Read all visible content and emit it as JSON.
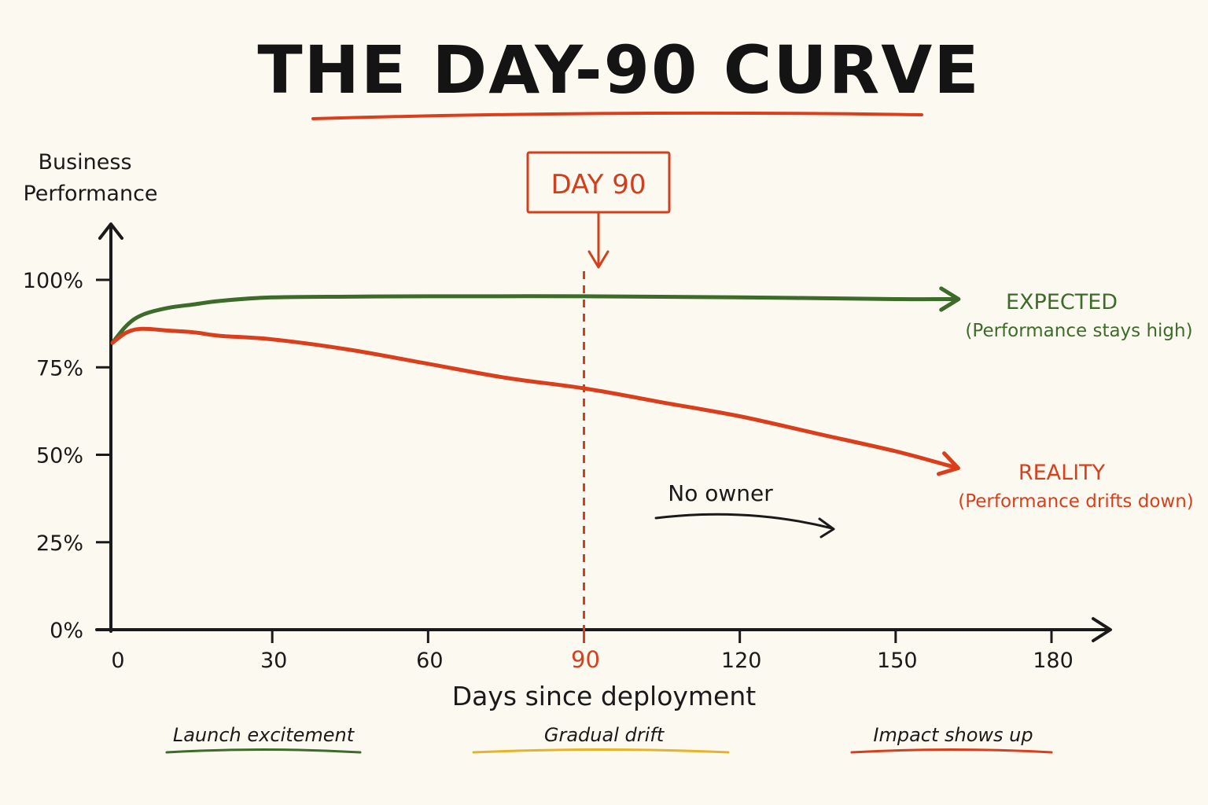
{
  "title": "THE DAY-90 CURVE",
  "colors": {
    "expected": "#3d6b2a",
    "reality": "#d93f1d",
    "marker": "#d23f1c",
    "ink": "#1a1a1a",
    "drift": "#e6b42a"
  },
  "marker": {
    "label": "DAY 90",
    "x": 90
  },
  "annotation": "No owner",
  "phases": [
    {
      "label": "Launch excitement",
      "color": "#3d6b2a"
    },
    {
      "label": "Gradual drift",
      "color": "#e6b42a"
    },
    {
      "label": "Impact shows up",
      "color": "#d93f1d"
    }
  ],
  "chart_data": {
    "type": "line",
    "title": "THE DAY-90 CURVE",
    "xlabel": "Days since deployment",
    "ylabel": "Business Performance",
    "xlim": [
      0,
      180
    ],
    "ylim": [
      0,
      100
    ],
    "x_ticks": [
      {
        "value": 0,
        "label": "0"
      },
      {
        "value": 30,
        "label": "30"
      },
      {
        "value": 60,
        "label": "60"
      },
      {
        "value": 90,
        "label": "90",
        "highlight": true
      },
      {
        "value": 120,
        "label": "120"
      },
      {
        "value": 150,
        "label": "150"
      },
      {
        "value": 180,
        "label": "180"
      }
    ],
    "y_ticks": [
      {
        "value": 0,
        "label": "0%"
      },
      {
        "value": 25,
        "label": "25%"
      },
      {
        "value": 50,
        "label": "50%"
      },
      {
        "value": 75,
        "label": "75%"
      },
      {
        "value": 100,
        "label": "100%"
      }
    ],
    "grid": false,
    "series": [
      {
        "name": "EXPECTED",
        "description": "(Performance stays high)",
        "color": "#3d6b2a",
        "x": [
          0,
          2,
          5,
          10,
          15,
          20,
          30,
          45,
          60,
          90,
          120,
          150,
          160
        ],
        "y": [
          82,
          87,
          90,
          92,
          93,
          94,
          95,
          95.2,
          95.3,
          95.3,
          95,
          94.5,
          94.5
        ]
      },
      {
        "name": "REALITY",
        "description": "(Performance drifts down)",
        "color": "#d93f1d",
        "x": [
          0,
          2,
          5,
          10,
          15,
          20,
          30,
          45,
          60,
          75,
          90,
          105,
          120,
          135,
          150,
          160
        ],
        "y": [
          82,
          85,
          86,
          85.5,
          85,
          84,
          83,
          80,
          76,
          72,
          69,
          65,
          61,
          56,
          51,
          47
        ]
      }
    ]
  }
}
